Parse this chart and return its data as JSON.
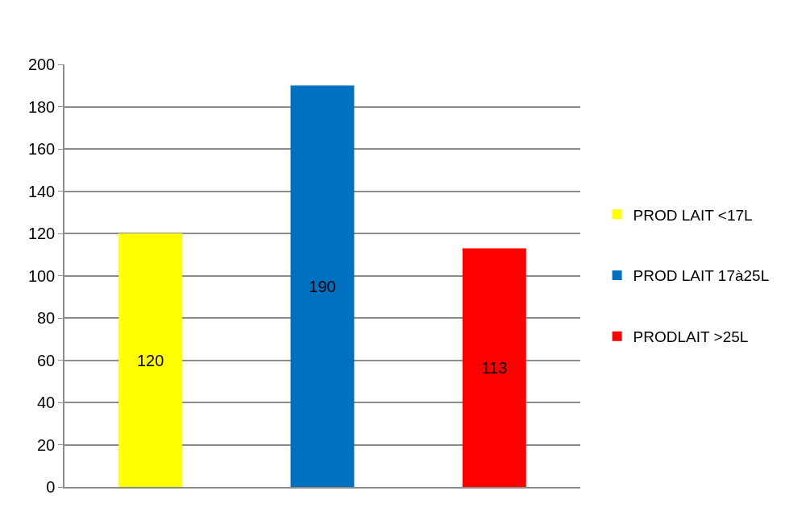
{
  "chart_data": {
    "type": "bar",
    "categories": [
      null,
      null,
      null
    ],
    "series": [
      {
        "name": "PROD LAIT <17L",
        "color": "#ffff00",
        "values": [
          120,
          null,
          null
        ]
      },
      {
        "name": "PROD LAIT 17à25L",
        "color": "#0070c0",
        "values": [
          null,
          190,
          null
        ]
      },
      {
        "name": "PRODLAIT >25L",
        "color": "#ff0000",
        "values": [
          null,
          null,
          113
        ]
      }
    ],
    "ylim": [
      0,
      200
    ],
    "yticks": [
      0,
      20,
      40,
      60,
      80,
      100,
      120,
      140,
      160,
      180,
      200
    ],
    "grid": "y",
    "legend": "right",
    "data_labels": true
  }
}
